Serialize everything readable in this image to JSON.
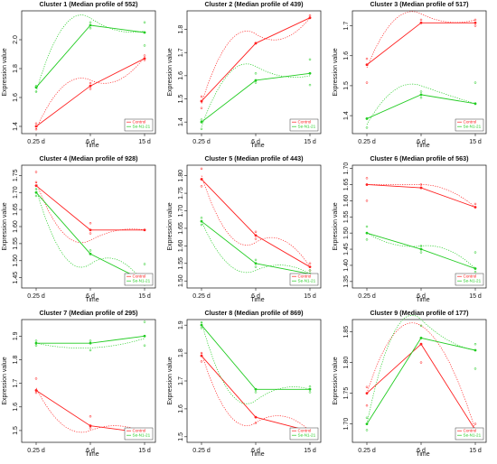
{
  "colors": {
    "control": "#ff2020",
    "treatment": "#22cc22",
    "axis": "#111111"
  },
  "legend": [
    "Control",
    "Se-N1-21"
  ],
  "chart_data": [
    {
      "type": "line",
      "title": "Cluster 1 (Median profile of 552)",
      "xlabel": "Time",
      "ylabel": "Expression value",
      "categories": [
        "0.25 d",
        "6 d",
        "15 d"
      ],
      "ylim": [
        1.35,
        2.2
      ],
      "yticks": [
        "1.4",
        "1.6",
        "1.8",
        "2.0"
      ],
      "series": [
        {
          "name": "Control",
          "values": [
            1.4,
            1.68,
            1.87
          ],
          "fit": [
            1.38,
            1.72,
            1.88
          ],
          "points": [
            [
              0,
              1.38
            ],
            [
              0,
              1.42
            ],
            [
              1,
              1.7
            ],
            [
              1,
              1.66
            ],
            [
              2,
              1.86
            ],
            [
              2,
              1.89
            ]
          ]
        },
        {
          "name": "Se-N1-21",
          "values": [
            1.67,
            2.1,
            2.05
          ],
          "fit": [
            1.64,
            2.15,
            2.06
          ],
          "points": [
            [
              0,
              1.64
            ],
            [
              0,
              1.68
            ],
            [
              1,
              2.12
            ],
            [
              1,
              2.08
            ],
            [
              2,
              1.96
            ],
            [
              2,
              2.12
            ]
          ]
        }
      ]
    },
    {
      "type": "line",
      "title": "Cluster 2 (Median profile of 439)",
      "xlabel": "Time",
      "ylabel": "Expression value",
      "categories": [
        "0.25 d",
        "6 d",
        "15 d"
      ],
      "ylim": [
        1.35,
        1.88
      ],
      "yticks": [
        "1.4",
        "1.5",
        "1.6",
        "1.7",
        "1.8"
      ],
      "series": [
        {
          "name": "Control",
          "values": [
            1.49,
            1.74,
            1.85
          ],
          "fit": [
            1.48,
            1.78,
            1.85
          ],
          "points": [
            [
              0,
              1.46
            ],
            [
              0,
              1.51
            ],
            [
              1,
              1.74
            ],
            [
              1,
              1.74
            ],
            [
              2,
              1.85
            ],
            [
              2,
              1.86
            ]
          ]
        },
        {
          "name": "Se-N1-21",
          "values": [
            1.4,
            1.58,
            1.61
          ],
          "fit": [
            1.38,
            1.64,
            1.6
          ],
          "points": [
            [
              0,
              1.37
            ],
            [
              0,
              1.41
            ],
            [
              1,
              1.57
            ],
            [
              1,
              1.61
            ],
            [
              2,
              1.56
            ],
            [
              2,
              1.67
            ]
          ]
        }
      ]
    },
    {
      "type": "line",
      "title": "Cluster 3 (Median profile of 517)",
      "xlabel": "Time",
      "ylabel": "Expression value",
      "categories": [
        "0.25 d",
        "6 d",
        "15 d"
      ],
      "ylim": [
        1.34,
        1.75
      ],
      "yticks": [
        "1.4",
        "1.5",
        "1.6",
        "1.7"
      ],
      "series": [
        {
          "name": "Control",
          "values": [
            1.57,
            1.71,
            1.71
          ],
          "fit": [
            1.56,
            1.74,
            1.72
          ],
          "points": [
            [
              0,
              1.51
            ],
            [
              0,
              1.59
            ],
            [
              1,
              1.71
            ],
            [
              1,
              1.72
            ],
            [
              2,
              1.7
            ],
            [
              2,
              1.72
            ]
          ]
        },
        {
          "name": "Se-N1-21",
          "values": [
            1.39,
            1.47,
            1.44
          ],
          "fit": [
            1.37,
            1.5,
            1.44
          ],
          "points": [
            [
              0,
              1.36
            ],
            [
              0,
              1.39
            ],
            [
              1,
              1.46
            ],
            [
              1,
              1.48
            ],
            [
              2,
              1.37
            ],
            [
              2,
              1.51
            ]
          ]
        }
      ]
    },
    {
      "type": "line",
      "title": "Cluster 4 (Median profile of 928)",
      "xlabel": "Time",
      "ylabel": "Expression value",
      "categories": [
        "0.25 d",
        "6 d",
        "15 d"
      ],
      "ylim": [
        1.42,
        1.78
      ],
      "yticks": [
        "1.45",
        "1.50",
        "1.55",
        "1.60",
        "1.65",
        "1.70",
        "1.75"
      ],
      "series": [
        {
          "name": "Control",
          "values": [
            1.72,
            1.59,
            1.59
          ],
          "fit": [
            1.73,
            1.56,
            1.59
          ],
          "points": [
            [
              0,
              1.76
            ],
            [
              0,
              1.73
            ],
            [
              1,
              1.61
            ],
            [
              1,
              1.58
            ],
            [
              2,
              1.59
            ],
            [
              2,
              1.59
            ]
          ]
        },
        {
          "name": "Se-N1-21",
          "values": [
            1.7,
            1.52,
            1.44
          ],
          "fit": [
            1.71,
            1.49,
            1.43
          ],
          "points": [
            [
              0,
              1.71
            ],
            [
              0,
              1.69
            ],
            [
              1,
              1.53
            ],
            [
              1,
              1.52
            ],
            [
              2,
              1.49
            ],
            [
              2,
              1.43
            ]
          ]
        }
      ]
    },
    {
      "type": "line",
      "title": "Cluster 5 (Median profile of 443)",
      "xlabel": "Time",
      "ylabel": "Expression value",
      "categories": [
        "0.25 d",
        "6 d",
        "15 d"
      ],
      "ylim": [
        1.48,
        1.83
      ],
      "yticks": [
        "1.50",
        "1.55",
        "1.60",
        "1.65",
        "1.70",
        "1.75",
        "1.80"
      ],
      "series": [
        {
          "name": "Control",
          "values": [
            1.79,
            1.63,
            1.54
          ],
          "fit": [
            1.8,
            1.61,
            1.54
          ],
          "points": [
            [
              0,
              1.82
            ],
            [
              0,
              1.77
            ],
            [
              1,
              1.64
            ],
            [
              1,
              1.62
            ],
            [
              2,
              1.55
            ],
            [
              2,
              1.53
            ]
          ]
        },
        {
          "name": "Se-N1-21",
          "values": [
            1.67,
            1.55,
            1.52
          ],
          "fit": [
            1.67,
            1.53,
            1.52
          ],
          "points": [
            [
              0,
              1.68
            ],
            [
              0,
              1.66
            ],
            [
              1,
              1.56
            ],
            [
              1,
              1.54
            ],
            [
              2,
              1.53
            ],
            [
              2,
              1.51
            ]
          ]
        }
      ]
    },
    {
      "type": "line",
      "title": "Cluster 6 (Median profile of 563)",
      "xlabel": "Time",
      "ylabel": "Expression value",
      "categories": [
        "0.25 d",
        "6 d",
        "15 d"
      ],
      "ylim": [
        1.33,
        1.71
      ],
      "yticks": [
        "1.35",
        "1.40",
        "1.45",
        "1.50",
        "1.55",
        "1.60",
        "1.65",
        "1.70"
      ],
      "series": [
        {
          "name": "Control",
          "values": [
            1.65,
            1.64,
            1.58
          ],
          "fit": [
            1.65,
            1.65,
            1.58
          ],
          "points": [
            [
              0,
              1.67
            ],
            [
              0,
              1.6
            ],
            [
              1,
              1.64
            ],
            [
              1,
              1.65
            ],
            [
              2,
              1.58
            ],
            [
              2,
              1.59
            ]
          ]
        },
        {
          "name": "Se-N1-21",
          "values": [
            1.5,
            1.45,
            1.39
          ],
          "fit": [
            1.5,
            1.46,
            1.39
          ],
          "points": [
            [
              0,
              1.52
            ],
            [
              0,
              1.48
            ],
            [
              1,
              1.46
            ],
            [
              1,
              1.44
            ],
            [
              2,
              1.44
            ],
            [
              2,
              1.38
            ]
          ]
        }
      ]
    },
    {
      "type": "line",
      "title": "Cluster 7 (Median profile of 295)",
      "xlabel": "Time",
      "ylabel": "Expression value",
      "categories": [
        "0.25 d",
        "6 d",
        "15 d"
      ],
      "ylim": [
        1.45,
        1.97
      ],
      "yticks": [
        "1.5",
        "1.6",
        "1.7",
        "1.8",
        "1.9"
      ],
      "series": [
        {
          "name": "Control",
          "values": [
            1.67,
            1.52,
            1.49
          ],
          "fit": [
            1.68,
            1.5,
            1.49
          ],
          "points": [
            [
              0,
              1.72
            ],
            [
              0,
              1.66
            ],
            [
              1,
              1.56
            ],
            [
              1,
              1.51
            ],
            [
              2,
              1.48
            ],
            [
              2,
              1.5
            ]
          ]
        },
        {
          "name": "Se-N1-21",
          "values": [
            1.87,
            1.87,
            1.9
          ],
          "fit": [
            1.87,
            1.85,
            1.89
          ],
          "points": [
            [
              0,
              1.86
            ],
            [
              0,
              1.88
            ],
            [
              1,
              1.88
            ],
            [
              1,
              1.84
            ],
            [
              2,
              1.86
            ],
            [
              2,
              1.96
            ]
          ]
        }
      ]
    },
    {
      "type": "line",
      "title": "Cluster 8 (Median profile of 869)",
      "xlabel": "Time",
      "ylabel": "Expression value",
      "categories": [
        "0.25 d",
        "6 d",
        "15 d"
      ],
      "ylim": [
        1.48,
        1.92
      ],
      "yticks": [
        "1.5",
        "1.6",
        "1.7",
        "1.8",
        "1.9"
      ],
      "series": [
        {
          "name": "Control",
          "values": [
            1.79,
            1.57,
            1.52
          ],
          "fit": [
            1.8,
            1.55,
            1.52
          ],
          "points": [
            [
              0,
              1.77
            ],
            [
              0,
              1.8
            ],
            [
              1,
              1.57
            ],
            [
              1,
              1.55
            ],
            [
              2,
              1.52
            ],
            [
              2,
              1.51
            ]
          ]
        },
        {
          "name": "Se-N1-21",
          "values": [
            1.9,
            1.67,
            1.67
          ],
          "fit": [
            1.91,
            1.63,
            1.67
          ],
          "points": [
            [
              0,
              1.89
            ],
            [
              0,
              1.91
            ],
            [
              1,
              1.67
            ],
            [
              1,
              1.66
            ],
            [
              2,
              1.68
            ],
            [
              2,
              1.66
            ]
          ]
        }
      ]
    },
    {
      "type": "line",
      "title": "Cluster 9 (Median profile of 177)",
      "xlabel": "Time",
      "ylabel": "Expression value",
      "categories": [
        "0.25 d",
        "6 d",
        "15 d"
      ],
      "ylim": [
        1.67,
        1.87
      ],
      "yticks": [
        "1.70",
        "1.75",
        "1.80",
        "1.85"
      ],
      "series": [
        {
          "name": "Control",
          "values": [
            1.75,
            1.83,
            1.69
          ],
          "fit": [
            1.75,
            1.86,
            1.69
          ],
          "points": [
            [
              0,
              1.73
            ],
            [
              0,
              1.76
            ],
            [
              1,
              1.84
            ],
            [
              1,
              1.8
            ],
            [
              2,
              1.7
            ],
            [
              2,
              1.69
            ]
          ]
        },
        {
          "name": "Se-N1-21",
          "values": [
            1.7,
            1.84,
            1.82
          ],
          "fit": [
            1.7,
            1.87,
            1.82
          ],
          "points": [
            [
              0,
              1.69
            ],
            [
              0,
              1.71
            ],
            [
              1,
              1.84
            ],
            [
              1,
              1.86
            ],
            [
              2,
              1.83
            ],
            [
              2,
              1.79
            ]
          ]
        }
      ]
    }
  ]
}
